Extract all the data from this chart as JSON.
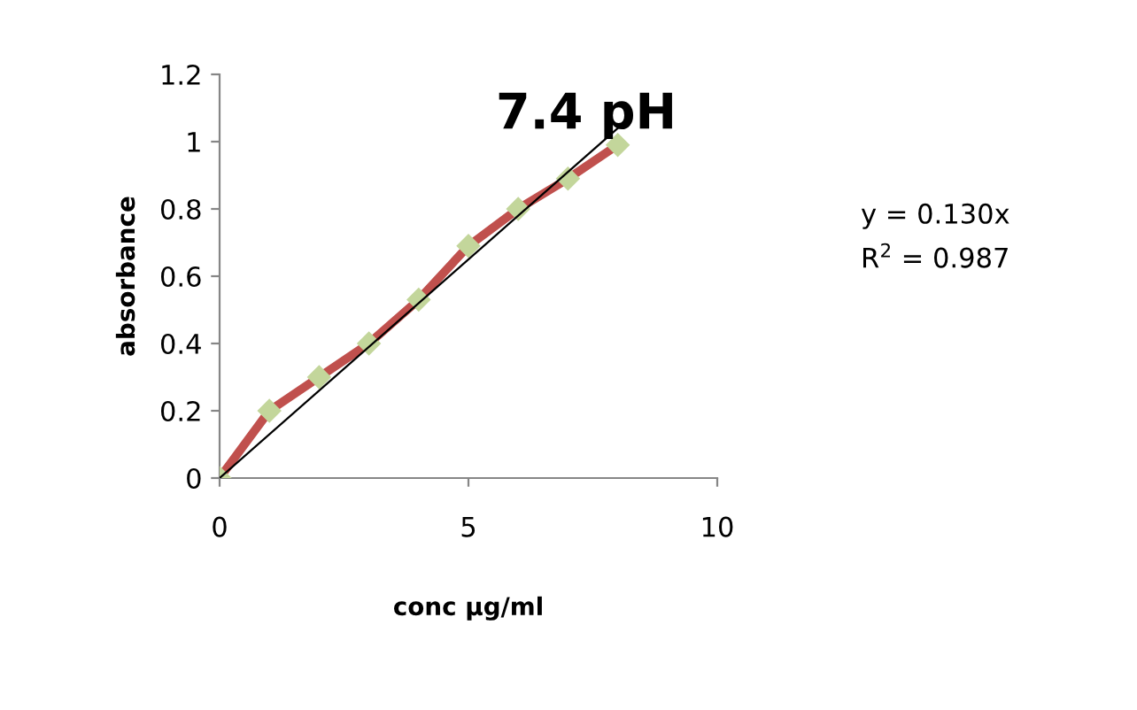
{
  "chart_data": {
    "type": "line",
    "title": "7.4 pH",
    "xlabel": "conc µg/ml",
    "ylabel": "absorbance",
    "xlim": [
      0,
      10
    ],
    "xticks": [
      0,
      5,
      10
    ],
    "ylim": [
      0,
      1.2
    ],
    "yticks": [
      0,
      0.2,
      0.4,
      0.6,
      0.8,
      1,
      1.2
    ],
    "grid": false,
    "legend": false,
    "series": [
      {
        "x": [
          0,
          1,
          2,
          3,
          4,
          5,
          6,
          7,
          8
        ],
        "values": [
          0,
          0.2,
          0.3,
          0.4,
          0.53,
          0.69,
          0.8,
          0.89,
          0.99
        ],
        "color": "#c0504d",
        "marker": "diamond"
      },
      {
        "x": [
          0,
          8
        ],
        "values": [
          0,
          1.04
        ],
        "color": "#000000"
      }
    ],
    "annotations": [
      "y = 0.130x",
      "R$^{2}$ = 0.987"
    ]
  }
}
